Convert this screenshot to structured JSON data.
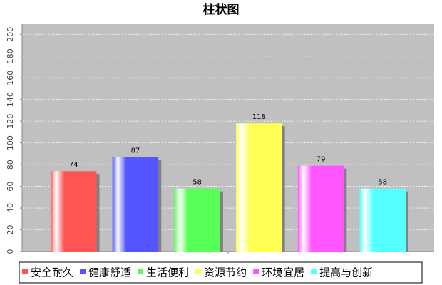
{
  "chart_data": {
    "type": "bar",
    "title": "柱状图",
    "categories": [
      null
    ],
    "series": [
      {
        "name": "安全耐久",
        "color": "#ff5555",
        "values": [
          74
        ]
      },
      {
        "name": "健康舒适",
        "color": "#5555ff",
        "values": [
          87
        ]
      },
      {
        "name": "生活便利",
        "color": "#55ff55",
        "values": [
          58
        ]
      },
      {
        "name": "资源节约",
        "color": "#ffff55",
        "values": [
          118
        ]
      },
      {
        "name": "环境宜居",
        "color": "#ff55ff",
        "values": [
          79
        ]
      },
      {
        "name": "提高与创新",
        "color": "#55ffff",
        "values": [
          58
        ]
      }
    ],
    "ylim": [
      0,
      210
    ],
    "yticks": [
      0,
      20,
      40,
      60,
      80,
      100,
      120,
      140,
      160,
      180,
      200
    ],
    "grid": true,
    "legend": "bottom"
  }
}
